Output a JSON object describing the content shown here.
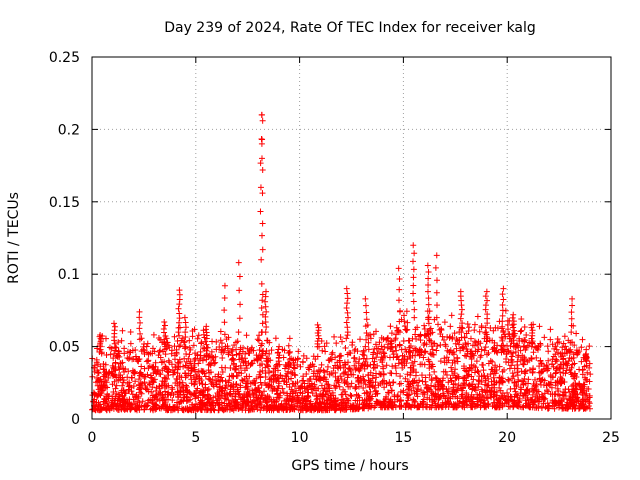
{
  "chart_data": {
    "type": "scatter",
    "title": "Day 239 of 2024, Rate Of TEC Index for receiver kalg",
    "xlabel": "GPS time / hours",
    "ylabel": "ROTI / TECUs",
    "xlim": [
      0,
      25
    ],
    "ylim": [
      0,
      0.25
    ],
    "xticks": [
      0,
      5,
      10,
      15,
      20,
      25
    ],
    "xtick_labels": [
      "0",
      "5",
      "10",
      "15",
      "20",
      "25"
    ],
    "yticks": [
      0,
      0.05,
      0.1,
      0.15,
      0.2,
      0.25
    ],
    "ytick_labels": [
      "0",
      "0.05",
      "0.1",
      "0.15",
      "0.2",
      "0.25"
    ],
    "grid": true,
    "marker": "+",
    "color": "#ff0000",
    "series": [
      {
        "name": "ROTI",
        "x_range_hours": [
          0,
          24
        ],
        "background_band": [
          [
            0,
            0.006,
            0.032
          ],
          [
            1,
            0.006,
            0.034
          ],
          [
            2,
            0.006,
            0.038
          ],
          [
            3,
            0.006,
            0.04
          ],
          [
            4,
            0.006,
            0.04
          ],
          [
            5,
            0.006,
            0.038
          ],
          [
            6,
            0.006,
            0.036
          ],
          [
            7,
            0.006,
            0.036
          ],
          [
            8,
            0.006,
            0.04
          ],
          [
            9,
            0.006,
            0.034
          ],
          [
            10,
            0.006,
            0.03
          ],
          [
            11,
            0.006,
            0.03
          ],
          [
            12,
            0.006,
            0.034
          ],
          [
            13,
            0.007,
            0.04
          ],
          [
            14,
            0.008,
            0.044
          ],
          [
            15,
            0.008,
            0.05
          ],
          [
            16,
            0.008,
            0.052
          ],
          [
            17,
            0.008,
            0.048
          ],
          [
            18,
            0.008,
            0.046
          ],
          [
            19,
            0.008,
            0.048
          ],
          [
            20,
            0.008,
            0.048
          ],
          [
            21,
            0.008,
            0.044
          ],
          [
            22,
            0.007,
            0.04
          ],
          [
            23,
            0.007,
            0.04
          ],
          [
            24,
            0.007,
            0.036
          ]
        ],
        "spikes": [
          {
            "x": 0.4,
            "y": [
              0.05,
              0.058
            ]
          },
          {
            "x": 1.1,
            "y": [
              0.045,
              0.066
            ]
          },
          {
            "x": 2.3,
            "y": [
              0.055,
              0.074
            ]
          },
          {
            "x": 3.5,
            "y": [
              0.05,
              0.067
            ]
          },
          {
            "x": 4.2,
            "y": [
              0.06,
              0.089
            ]
          },
          {
            "x": 4.5,
            "y": [
              0.05,
              0.07
            ]
          },
          {
            "x": 5.5,
            "y": [
              0.045,
              0.064
            ]
          },
          {
            "x": 6.4,
            "y": [
              0.05,
              0.092
            ]
          },
          {
            "x": 7.1,
            "y": [
              0.06,
              0.108
            ]
          },
          {
            "x": 8.15,
            "y": [
              0.06,
              0.21
            ]
          },
          {
            "x": 8.35,
            "y": [
              0.06,
              0.088
            ]
          },
          {
            "x": 9.0,
            "y": [
              0.04,
              0.05
            ]
          },
          {
            "x": 10.9,
            "y": [
              0.05,
              0.065
            ]
          },
          {
            "x": 12.3,
            "y": [
              0.06,
              0.09
            ]
          },
          {
            "x": 13.2,
            "y": [
              0.05,
              0.083
            ]
          },
          {
            "x": 14.8,
            "y": [
              0.06,
              0.104
            ]
          },
          {
            "x": 15.5,
            "y": [
              0.07,
              0.12
            ]
          },
          {
            "x": 16.2,
            "y": [
              0.07,
              0.106
            ]
          },
          {
            "x": 16.6,
            "y": [
              0.07,
              0.113
            ]
          },
          {
            "x": 17.8,
            "y": [
              0.06,
              0.088
            ]
          },
          {
            "x": 19.0,
            "y": [
              0.06,
              0.088
            ]
          },
          {
            "x": 19.8,
            "y": [
              0.06,
              0.09
            ]
          },
          {
            "x": 20.3,
            "y": [
              0.05,
              0.072
            ]
          },
          {
            "x": 21.2,
            "y": [
              0.05,
              0.065
            ]
          },
          {
            "x": 23.1,
            "y": [
              0.06,
              0.083
            ]
          },
          {
            "x": 23.8,
            "y": [
              0.04,
              0.045
            ]
          }
        ],
        "peak": {
          "x": 8.2,
          "y": 0.21
        }
      }
    ]
  }
}
